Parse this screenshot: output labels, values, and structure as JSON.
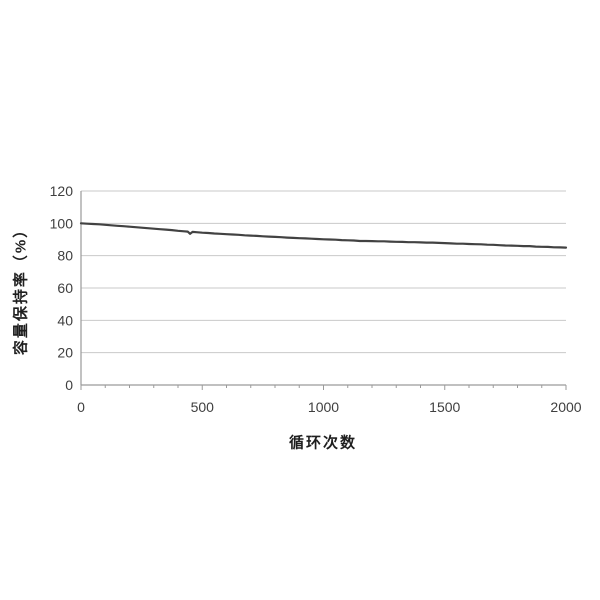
{
  "page": {
    "background": "#ffffff"
  },
  "chart_data": {
    "type": "line",
    "title": "",
    "xlabel": "循环次数",
    "ylabel": "容量保持率（%）",
    "xlim": [
      0,
      2000
    ],
    "ylim": [
      0,
      120
    ],
    "xticks_major": [
      0,
      500,
      1000,
      1500,
      2000
    ],
    "xtick_minor_step": 100,
    "yticks": [
      0,
      20,
      40,
      60,
      80,
      100,
      120
    ],
    "grid": "horizontal-only",
    "legend": "none",
    "line_color": "#424242",
    "grid_color": "#c9c9c9",
    "axis_color": "#9a9a9a",
    "text_color": "#3f3f3f",
    "series": [
      {
        "name": "容量保持率",
        "points": [
          [
            0,
            100.0
          ],
          [
            25,
            99.8
          ],
          [
            50,
            99.6
          ],
          [
            75,
            99.4
          ],
          [
            100,
            99.1
          ],
          [
            125,
            98.8
          ],
          [
            150,
            98.5
          ],
          [
            175,
            98.2
          ],
          [
            200,
            97.9
          ],
          [
            225,
            97.6
          ],
          [
            250,
            97.3
          ],
          [
            275,
            97.0
          ],
          [
            300,
            96.7
          ],
          [
            325,
            96.4
          ],
          [
            350,
            96.1
          ],
          [
            375,
            95.8
          ],
          [
            400,
            95.4
          ],
          [
            425,
            95.1
          ],
          [
            440,
            94.9
          ],
          [
            450,
            93.5
          ],
          [
            460,
            94.7
          ],
          [
            475,
            94.5
          ],
          [
            500,
            94.2
          ],
          [
            525,
            94.0
          ],
          [
            550,
            93.7
          ],
          [
            575,
            93.5
          ],
          [
            600,
            93.3
          ],
          [
            625,
            93.1
          ],
          [
            650,
            92.9
          ],
          [
            675,
            92.6
          ],
          [
            700,
            92.4
          ],
          [
            725,
            92.2
          ],
          [
            750,
            92.0
          ],
          [
            775,
            91.8
          ],
          [
            800,
            91.6
          ],
          [
            825,
            91.4
          ],
          [
            850,
            91.2
          ],
          [
            875,
            91.0
          ],
          [
            900,
            90.8
          ],
          [
            925,
            90.7
          ],
          [
            950,
            90.5
          ],
          [
            975,
            90.3
          ],
          [
            1000,
            90.1
          ],
          [
            1025,
            90.0
          ],
          [
            1050,
            89.9
          ],
          [
            1075,
            89.6
          ],
          [
            1100,
            89.5
          ],
          [
            1125,
            89.4
          ],
          [
            1150,
            89.1
          ],
          [
            1175,
            89.1
          ],
          [
            1200,
            89.0
          ],
          [
            1225,
            88.9
          ],
          [
            1250,
            88.9
          ],
          [
            1275,
            88.7
          ],
          [
            1300,
            88.6
          ],
          [
            1325,
            88.5
          ],
          [
            1350,
            88.3
          ],
          [
            1375,
            88.3
          ],
          [
            1400,
            88.2
          ],
          [
            1425,
            88.1
          ],
          [
            1450,
            88.1
          ],
          [
            1475,
            87.9
          ],
          [
            1500,
            87.8
          ],
          [
            1525,
            87.6
          ],
          [
            1550,
            87.4
          ],
          [
            1575,
            87.4
          ],
          [
            1600,
            87.2
          ],
          [
            1625,
            87.1
          ],
          [
            1650,
            87.0
          ],
          [
            1675,
            86.8
          ],
          [
            1700,
            86.7
          ],
          [
            1725,
            86.5
          ],
          [
            1750,
            86.3
          ],
          [
            1775,
            86.2
          ],
          [
            1800,
            86.1
          ],
          [
            1825,
            85.9
          ],
          [
            1850,
            85.9
          ],
          [
            1875,
            85.6
          ],
          [
            1900,
            85.5
          ],
          [
            1925,
            85.4
          ],
          [
            1950,
            85.2
          ],
          [
            1975,
            85.1
          ],
          [
            2000,
            85.0
          ]
        ]
      }
    ]
  }
}
